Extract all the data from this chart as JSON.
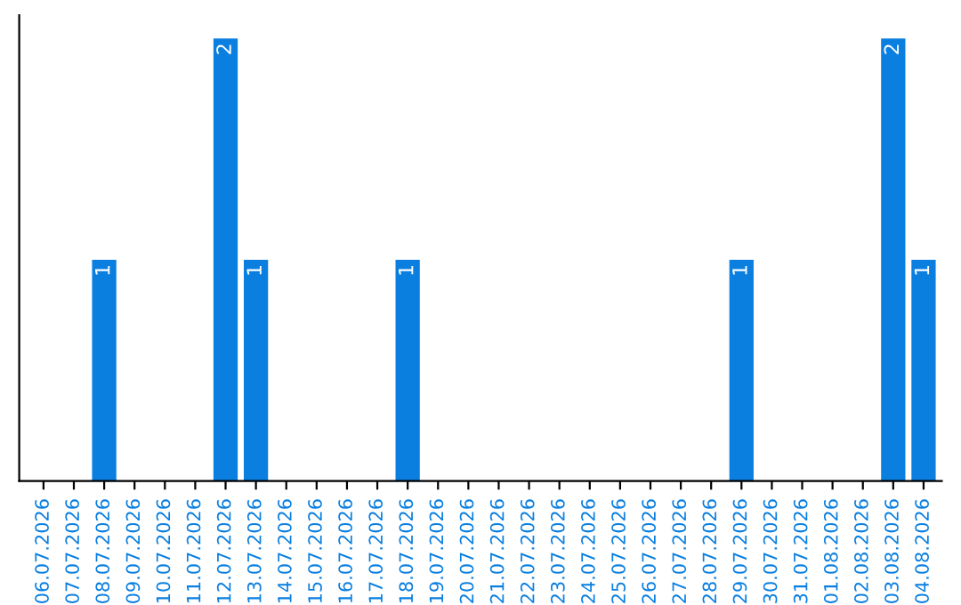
{
  "chart_data": {
    "type": "bar",
    "categories": [
      "06.07.2026",
      "07.07.2026",
      "08.07.2026",
      "09.07.2026",
      "10.07.2026",
      "11.07.2026",
      "12.07.2026",
      "13.07.2026",
      "14.07.2026",
      "15.07.2026",
      "16.07.2026",
      "17.07.2026",
      "18.07.2026",
      "19.07.2026",
      "20.07.2026",
      "21.07.2026",
      "22.07.2026",
      "23.07.2026",
      "24.07.2026",
      "25.07.2026",
      "26.07.2026",
      "27.07.2026",
      "28.07.2026",
      "29.07.2026",
      "30.07.2026",
      "31.07.2026",
      "01.08.2026",
      "02.08.2026",
      "03.08.2026",
      "04.08.2026"
    ],
    "values": [
      0,
      0,
      1,
      0,
      0,
      0,
      2,
      1,
      0,
      0,
      0,
      0,
      1,
      0,
      0,
      0,
      0,
      0,
      0,
      0,
      0,
      0,
      0,
      1,
      0,
      0,
      0,
      0,
      2,
      1
    ],
    "value_labels": [
      null,
      null,
      "1",
      null,
      null,
      null,
      "2",
      "1",
      null,
      null,
      null,
      null,
      "1",
      null,
      null,
      null,
      null,
      null,
      null,
      null,
      null,
      null,
      null,
      "1",
      null,
      null,
      null,
      null,
      "2",
      "1"
    ],
    "color": "#0a7fe0",
    "tick_labels": "x",
    "grid": false,
    "legend": false
  }
}
